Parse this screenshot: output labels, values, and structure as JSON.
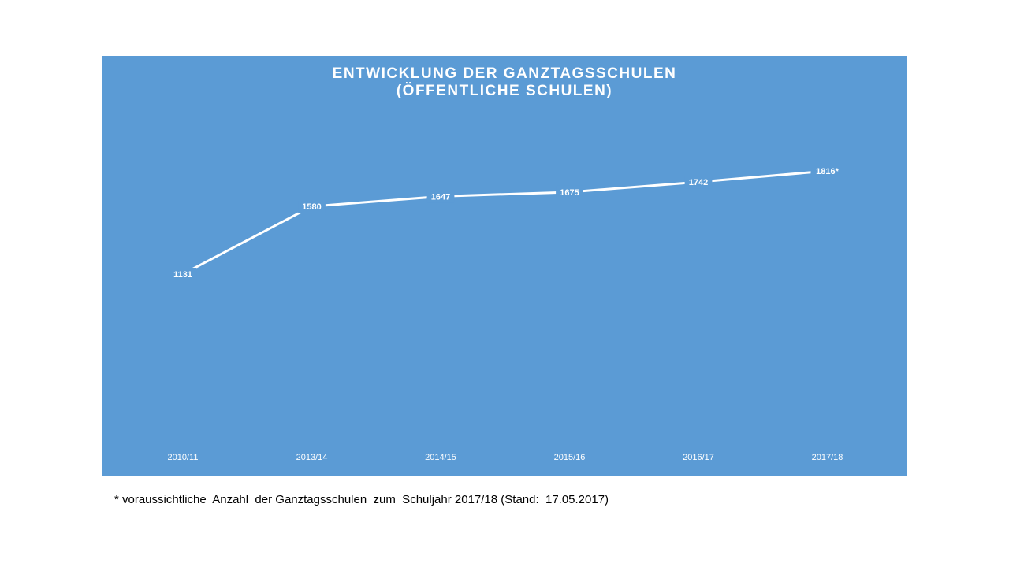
{
  "chart_data": {
    "type": "line",
    "title_line1": "ENTWICKLUNG DER GANZTAGSSCHULEN",
    "title_line2": "(ÖFFENTLICHE SCHULEN)",
    "categories": [
      "2010/11",
      "2013/14",
      "2014/15",
      "2015/16",
      "2016/17",
      "2017/18"
    ],
    "series": [
      {
        "values": [
          1131,
          1580,
          1647,
          1675,
          1742,
          1816
        ],
        "labels": [
          "1131",
          "1580",
          "1647",
          "1675",
          "1742",
          "1816*"
        ]
      }
    ],
    "ylim": [
      0,
      2100
    ],
    "grid": false,
    "legend": "none",
    "colors": {
      "background": "#5b9bd5",
      "line": "#ffffff",
      "drop_lines": "#ffffff",
      "text": "#ffffff"
    }
  },
  "footnote": "* voraussichtliche  Anzahl  der Ganztagsschulen  zum  Schuljahr 2017/18 (Stand:  17.05.2017)"
}
